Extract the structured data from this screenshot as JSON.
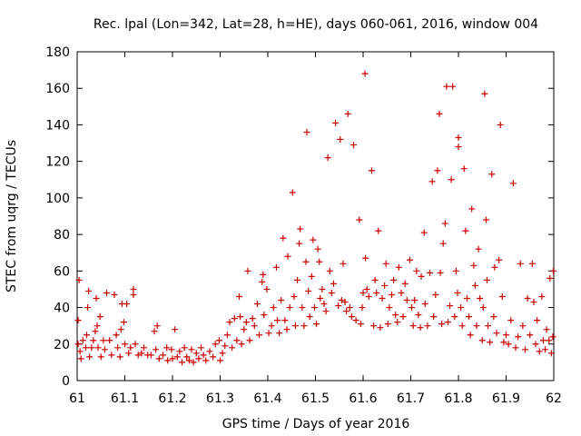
{
  "chart_data": {
    "type": "scatter",
    "title": "Rec. lpal (Lon=342, Lat=28, h=HE), days 060-061, 2016, window 004",
    "xlabel": "GPS time / Days of year 2016",
    "ylabel": "STEC from uqrg / TECUs",
    "xlim": [
      61,
      62
    ],
    "ylim": [
      0,
      180
    ],
    "xticks": [
      "61",
      "61.1",
      "61.2",
      "61.3",
      "61.4",
      "61.5",
      "61.6",
      "61.7",
      "61.8",
      "61.9",
      "62"
    ],
    "yticks": [
      "0",
      "20",
      "40",
      "60",
      "80",
      "100",
      "120",
      "140",
      "160",
      "180"
    ],
    "grid": false,
    "legend": "none",
    "marker": "+",
    "color": "#cc0000",
    "series": [
      {
        "points": [
          [
            61.002,
            20
          ],
          [
            61.002,
            33
          ],
          [
            61.004,
            55
          ],
          [
            61.006,
            16
          ],
          [
            61.008,
            12
          ],
          [
            61.012,
            22
          ],
          [
            61.018,
            18
          ],
          [
            61.02,
            25
          ],
          [
            61.022,
            40
          ],
          [
            61.024,
            49
          ],
          [
            61.026,
            13
          ],
          [
            61.03,
            18
          ],
          [
            61.034,
            22
          ],
          [
            61.038,
            27
          ],
          [
            61.04,
            45
          ],
          [
            61.042,
            30
          ],
          [
            61.044,
            18
          ],
          [
            61.048,
            35
          ],
          [
            61.05,
            13
          ],
          [
            61.055,
            22
          ],
          [
            61.058,
            17
          ],
          [
            61.062,
            48
          ],
          [
            61.068,
            22
          ],
          [
            61.072,
            14
          ],
          [
            61.078,
            47
          ],
          [
            61.082,
            25
          ],
          [
            61.085,
            18
          ],
          [
            61.09,
            13
          ],
          [
            61.092,
            28
          ],
          [
            61.094,
            42
          ],
          [
            61.098,
            32
          ],
          [
            61.1,
            20
          ],
          [
            61.104,
            42
          ],
          [
            61.108,
            15
          ],
          [
            61.112,
            18
          ],
          [
            61.118,
            50
          ],
          [
            61.118,
            47
          ],
          [
            61.122,
            20
          ],
          [
            61.128,
            14
          ],
          [
            61.135,
            15
          ],
          [
            61.14,
            18
          ],
          [
            61.148,
            14
          ],
          [
            61.155,
            14
          ],
          [
            61.162,
            27
          ],
          [
            61.165,
            17
          ],
          [
            61.168,
            30
          ],
          [
            61.172,
            12
          ],
          [
            61.18,
            14
          ],
          [
            61.188,
            18
          ],
          [
            61.19,
            11
          ],
          [
            61.198,
            17
          ],
          [
            61.2,
            12
          ],
          [
            61.205,
            28
          ],
          [
            61.21,
            13
          ],
          [
            61.215,
            16
          ],
          [
            61.22,
            10
          ],
          [
            61.225,
            18
          ],
          [
            61.23,
            13
          ],
          [
            61.235,
            11
          ],
          [
            61.24,
            17
          ],
          [
            61.244,
            10
          ],
          [
            61.25,
            15
          ],
          [
            61.255,
            12
          ],
          [
            61.26,
            18
          ],
          [
            61.265,
            14
          ],
          [
            61.27,
            11
          ],
          [
            61.278,
            16
          ],
          [
            61.285,
            13
          ],
          [
            61.29,
            20
          ],
          [
            61.298,
            22
          ],
          [
            61.3,
            11
          ],
          [
            61.305,
            15
          ],
          [
            61.31,
            19
          ],
          [
            61.315,
            25
          ],
          [
            61.32,
            32
          ],
          [
            61.325,
            18
          ],
          [
            61.33,
            34
          ],
          [
            61.335,
            22
          ],
          [
            61.34,
            46
          ],
          [
            61.342,
            35
          ],
          [
            61.345,
            20
          ],
          [
            61.35,
            28
          ],
          [
            61.355,
            32
          ],
          [
            61.358,
            60
          ],
          [
            61.362,
            22
          ],
          [
            61.368,
            34
          ],
          [
            61.372,
            30
          ],
          [
            61.378,
            42
          ],
          [
            61.382,
            25
          ],
          [
            61.388,
            54
          ],
          [
            61.39,
            58
          ],
          [
            61.392,
            36
          ],
          [
            61.398,
            50
          ],
          [
            61.402,
            26
          ],
          [
            61.408,
            30
          ],
          [
            61.412,
            40
          ],
          [
            61.418,
            62
          ],
          [
            61.42,
            33
          ],
          [
            61.424,
            26
          ],
          [
            61.428,
            44
          ],
          [
            61.432,
            78
          ],
          [
            61.436,
            33
          ],
          [
            61.44,
            28
          ],
          [
            61.442,
            68
          ],
          [
            61.446,
            40
          ],
          [
            61.452,
            103
          ],
          [
            61.455,
            46
          ],
          [
            61.458,
            30
          ],
          [
            61.462,
            55
          ],
          [
            61.466,
            75
          ],
          [
            61.468,
            83
          ],
          [
            61.472,
            40
          ],
          [
            61.476,
            30
          ],
          [
            61.48,
            65
          ],
          [
            61.482,
            136
          ],
          [
            61.485,
            49
          ],
          [
            61.488,
            35
          ],
          [
            61.492,
            57
          ],
          [
            61.495,
            77
          ],
          [
            61.498,
            40
          ],
          [
            61.502,
            31
          ],
          [
            61.505,
            72
          ],
          [
            61.508,
            65
          ],
          [
            61.51,
            45
          ],
          [
            61.514,
            50
          ],
          [
            61.518,
            42
          ],
          [
            61.522,
            38
          ],
          [
            61.526,
            122
          ],
          [
            61.53,
            60
          ],
          [
            61.534,
            48
          ],
          [
            61.538,
            53
          ],
          [
            61.542,
            141
          ],
          [
            61.548,
            41
          ],
          [
            61.552,
            132
          ],
          [
            61.555,
            44
          ],
          [
            61.558,
            64
          ],
          [
            61.562,
            43
          ],
          [
            61.565,
            38
          ],
          [
            61.568,
            146
          ],
          [
            61.572,
            40
          ],
          [
            61.576,
            35
          ],
          [
            61.58,
            129
          ],
          [
            61.585,
            33
          ],
          [
            61.592,
            88
          ],
          [
            61.595,
            31
          ],
          [
            61.598,
            40
          ],
          [
            61.6,
            48
          ],
          [
            61.604,
            168
          ],
          [
            61.605,
            67
          ],
          [
            61.608,
            50
          ],
          [
            61.612,
            46
          ],
          [
            61.618,
            115
          ],
          [
            61.622,
            30
          ],
          [
            61.625,
            55
          ],
          [
            61.628,
            48
          ],
          [
            61.632,
            82
          ],
          [
            61.636,
            29
          ],
          [
            61.64,
            45
          ],
          [
            61.645,
            52
          ],
          [
            61.648,
            64
          ],
          [
            61.652,
            31
          ],
          [
            61.655,
            40
          ],
          [
            61.66,
            47
          ],
          [
            61.664,
            55
          ],
          [
            61.668,
            36
          ],
          [
            61.672,
            32
          ],
          [
            61.675,
            62
          ],
          [
            61.68,
            48
          ],
          [
            61.684,
            35
          ],
          [
            61.688,
            53
          ],
          [
            61.692,
            44
          ],
          [
            61.698,
            66
          ],
          [
            61.702,
            40
          ],
          [
            61.705,
            30
          ],
          [
            61.708,
            44
          ],
          [
            61.712,
            60
          ],
          [
            61.716,
            36
          ],
          [
            61.72,
            29
          ],
          [
            61.722,
            57
          ],
          [
            61.728,
            81
          ],
          [
            61.73,
            42
          ],
          [
            61.735,
            30
          ],
          [
            61.74,
            59
          ],
          [
            61.745,
            109
          ],
          [
            61.748,
            35
          ],
          [
            61.752,
            47
          ],
          [
            61.756,
            115
          ],
          [
            61.76,
            146
          ],
          [
            61.762,
            59
          ],
          [
            61.765,
            31
          ],
          [
            61.768,
            75
          ],
          [
            61.772,
            86
          ],
          [
            61.775,
            161
          ],
          [
            61.778,
            32
          ],
          [
            61.782,
            41
          ],
          [
            61.785,
            110
          ],
          [
            61.788,
            161
          ],
          [
            61.792,
            35
          ],
          [
            61.795,
            60
          ],
          [
            61.798,
            48
          ],
          [
            61.8,
            128
          ],
          [
            61.8,
            133
          ],
          [
            61.805,
            40
          ],
          [
            61.808,
            30
          ],
          [
            61.812,
            116
          ],
          [
            61.815,
            82
          ],
          [
            61.818,
            45
          ],
          [
            61.822,
            35
          ],
          [
            61.825,
            25
          ],
          [
            61.828,
            94
          ],
          [
            61.832,
            63
          ],
          [
            61.835,
            52
          ],
          [
            61.838,
            30
          ],
          [
            61.842,
            72
          ],
          [
            61.845,
            45
          ],
          [
            61.85,
            22
          ],
          [
            61.852,
            40
          ],
          [
            61.855,
            157
          ],
          [
            61.858,
            88
          ],
          [
            61.86,
            55
          ],
          [
            61.862,
            30
          ],
          [
            61.866,
            21
          ],
          [
            61.87,
            113
          ],
          [
            61.874,
            35
          ],
          [
            61.876,
            62
          ],
          [
            61.88,
            26
          ],
          [
            61.885,
            66
          ],
          [
            61.888,
            140
          ],
          [
            61.892,
            46
          ],
          [
            61.895,
            21
          ],
          [
            61.9,
            25
          ],
          [
            61.905,
            20
          ],
          [
            61.91,
            33
          ],
          [
            61.915,
            108
          ],
          [
            61.92,
            18
          ],
          [
            61.925,
            24
          ],
          [
            61.93,
            64
          ],
          [
            61.935,
            30
          ],
          [
            61.94,
            17
          ],
          [
            61.945,
            45
          ],
          [
            61.95,
            25
          ],
          [
            61.955,
            64
          ],
          [
            61.958,
            43
          ],
          [
            61.962,
            20
          ],
          [
            61.965,
            33
          ],
          [
            61.97,
            16
          ],
          [
            61.975,
            46
          ],
          [
            61.978,
            22
          ],
          [
            61.982,
            17
          ],
          [
            61.985,
            28
          ],
          [
            61.99,
            22
          ],
          [
            61.992,
            56
          ],
          [
            61.995,
            15
          ],
          [
            61.998,
            24
          ],
          [
            61.999,
            60
          ]
        ]
      }
    ]
  }
}
